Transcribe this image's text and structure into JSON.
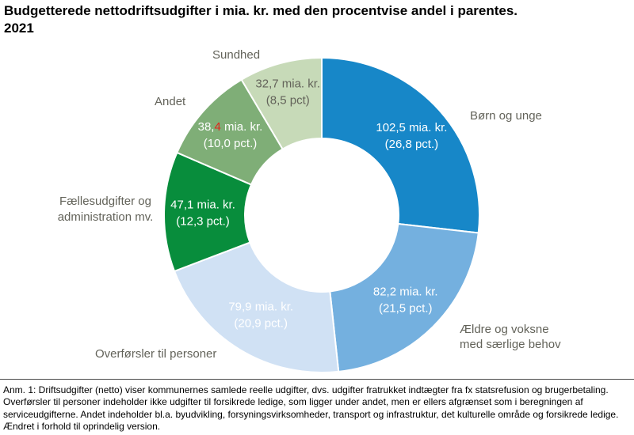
{
  "title": {
    "line1": "Budgetterede nettodriftsudgifter i mia. kr. med den procentvise andel i parentes.",
    "line2": "2021"
  },
  "footnote": "Anm. 1: Driftsudgifter (netto) viser kommunernes samlede reelle udgifter, dvs. udgifter fratrukket indtægter fra fx statsrefusion og brugerbetaling. Overførsler til personer indeholder ikke udgifter til forsikrede ledige, som ligger under andet, men er ellers afgrænset som i beregningen af serviceudgifterne. Andet indeholder bl.a. byudvikling, forsyningsvirksomheder, transport og infrastruktur, det kulturelle område og forsikrede ledige. Ændret i forhold til oprindelig version.",
  "colors": {
    "label_text": "#63635a",
    "segment_border": "#ffffff",
    "correction_red": "#e0251c"
  },
  "chart_data": {
    "type": "pie",
    "variant": "donut",
    "title": "Budgetterede nettodriftsudgifter i mia. kr. med den procentvise andel i parentes. 2021",
    "unit": "mia. kr.",
    "start_angle_deg": 0,
    "direction": "clockwise",
    "legend_position": "outside-labels",
    "segments": [
      {
        "label": "Børn og unge",
        "label_lines": [
          "Børn og unge"
        ],
        "value": 102.5,
        "pct": 26.8,
        "value_label": "102,5 mia. kr.",
        "pct_label": "(26,8 pct.)",
        "color": "#1787c8",
        "value_text_color": "#ffffff"
      },
      {
        "label": "Ældre og voksne med særlige behov",
        "label_lines": [
          "Ældre og voksne",
          "med særlige behov"
        ],
        "value": 82.2,
        "pct": 21.5,
        "value_label": "82,2 mia. kr.",
        "pct_label": "(21,5 pct.)",
        "color": "#74b0df",
        "value_text_color": "#ffffff"
      },
      {
        "label": "Overførsler til personer",
        "label_lines": [
          "Overførsler til personer"
        ],
        "value": 79.9,
        "pct": 20.9,
        "value_label": "79,9 mia. kr.",
        "pct_label": "(20,9 pct.)",
        "color": "#d0e1f4",
        "value_text_color": "#ffffff"
      },
      {
        "label": "Fællesudgifter og administration mv.",
        "label_lines": [
          "Fællesudgifter og",
          "administration mv."
        ],
        "value": 47.1,
        "pct": 12.3,
        "value_label": "47,1 mia. kr.",
        "pct_label": "(12,3 pct.)",
        "color": "#088d3c",
        "value_text_color": "#ffffff"
      },
      {
        "label": "Andet",
        "label_lines": [
          "Andet"
        ],
        "value": 38.4,
        "pct": 10.0,
        "value_label": "38,4 mia. kr.",
        "value_label_parts": [
          {
            "text": "38,",
            "color": "#ffffff"
          },
          {
            "text": "4",
            "color": "#e0251c"
          },
          {
            "text": " mia. kr.",
            "color": "#ffffff"
          }
        ],
        "pct_label": "(10,0 pct.)",
        "color": "#7fae77",
        "value_text_color": "#ffffff"
      },
      {
        "label": "Sundhed",
        "label_lines": [
          "Sundhed"
        ],
        "value": 32.7,
        "pct": 8.5,
        "value_label": "32,7 mia. kr.",
        "pct_label": "(8,5 pct)",
        "color": "#c7dab8",
        "value_text_color": "#63635a"
      }
    ]
  }
}
